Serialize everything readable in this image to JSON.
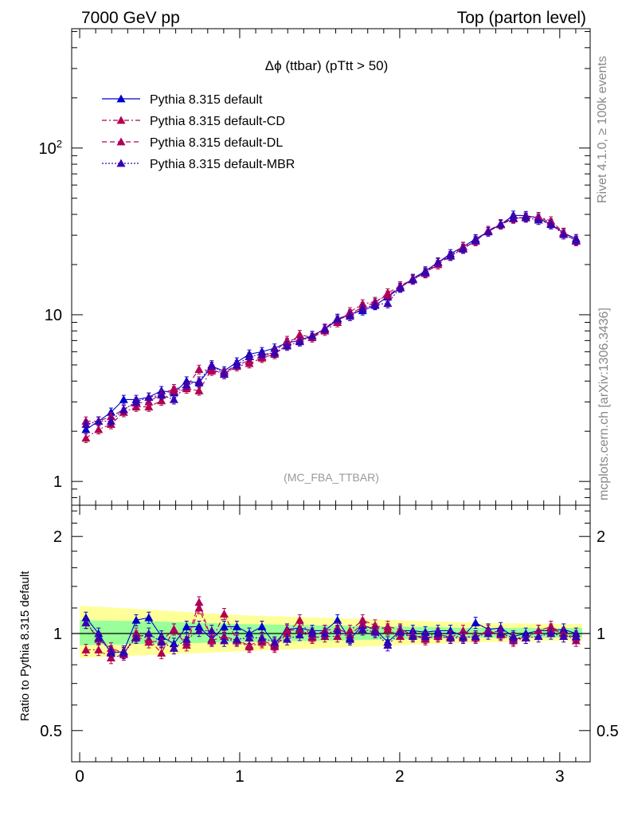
{
  "header": {
    "left": "7000 GeV pp",
    "right": "Top (parton level)"
  },
  "side_labels": {
    "rivet": "Rivet 4.1.0, ≥ 100k events",
    "mcplots": "mcplots.cern.ch [arXiv:1306.3436]"
  },
  "colors": {
    "default": "#0000cc",
    "cd": "#b0004e",
    "dl": "#b0005a",
    "mbr": "#3a00b0",
    "band_outer": "#ffff99",
    "band_inner": "#99ff99"
  },
  "chart_data": [
    {
      "type": "line",
      "title": "Δϕ (ttbar) (pTtt > 50)",
      "watermark": "(MC_FBA_TTBAR)",
      "xlabel": "",
      "ylabel": "",
      "yscale": "log",
      "xlim": [
        -0.05,
        3.19
      ],
      "ylim": [
        0.72,
        520
      ],
      "y_tick_labels": [
        "1",
        "10",
        "10^2"
      ],
      "x": [
        0.039,
        0.118,
        0.196,
        0.275,
        0.353,
        0.432,
        0.511,
        0.589,
        0.668,
        0.746,
        0.825,
        0.903,
        0.982,
        1.06,
        1.139,
        1.218,
        1.296,
        1.375,
        1.453,
        1.532,
        1.611,
        1.689,
        1.768,
        1.846,
        1.925,
        2.003,
        2.082,
        2.16,
        2.239,
        2.317,
        2.396,
        2.474,
        2.553,
        2.631,
        2.71,
        2.788,
        2.867,
        2.945,
        3.024,
        3.102
      ],
      "series": [
        {
          "name": "Pythia 8.315 default",
          "values": [
            2.05,
            2.3,
            2.6,
            3.1,
            3.1,
            3.2,
            3.5,
            3.4,
            4.0,
            3.9,
            4.9,
            4.6,
            5.2,
            5.8,
            6.0,
            6.3,
            6.8,
            7.0,
            7.5,
            8.2,
            9.3,
            10.1,
            10.6,
            11.4,
            12.8,
            14.5,
            16.5,
            18.3,
            20.6,
            23.2,
            25.6,
            28.5,
            31.5,
            34.8,
            39.5,
            39.3,
            38.0,
            34.8,
            31.0,
            28.6
          ]
        },
        {
          "name": "Pythia 8.315 default-CD",
          "values": [
            1.82,
            2.05,
            2.2,
            2.6,
            2.8,
            2.8,
            3.05,
            3.5,
            3.6,
            3.5,
            4.7,
            4.4,
            4.9,
            5.1,
            5.5,
            5.8,
            6.6,
            7.6,
            7.3,
            8.0,
            9.0,
            10.4,
            11.6,
            12.0,
            13.1,
            14.6,
            16.4,
            17.7,
            20.5,
            22.6,
            25.0,
            27.6,
            32.0,
            34.7,
            37.6,
            38.5,
            38.8,
            36.5,
            31.2,
            27.6
          ]
        },
        {
          "name": "Pythia 8.315 default-DL",
          "values": [
            2.3,
            2.3,
            2.45,
            2.7,
            2.95,
            3.0,
            3.35,
            3.6,
            3.7,
            4.7,
            4.6,
            4.5,
            5.0,
            5.3,
            5.6,
            6.0,
            7.0,
            7.2,
            7.3,
            8.3,
            9.5,
            10.0,
            11.2,
            11.8,
            13.5,
            14.9,
            16.4,
            17.8,
            20.0,
            22.6,
            25.7,
            27.6,
            32.0,
            35.1,
            38.0,
            38.4,
            38.8,
            35.5,
            30.9,
            27.7
          ]
        },
        {
          "name": "Pythia 8.315 default-MBR",
          "values": [
            2.2,
            2.3,
            2.3,
            2.7,
            3.0,
            3.2,
            3.3,
            3.1,
            3.8,
            4.0,
            5.0,
            4.4,
            5.0,
            5.6,
            5.8,
            5.9,
            6.5,
            6.9,
            7.5,
            8.2,
            9.5,
            9.8,
            10.9,
            11.5,
            11.7,
            14.6,
            16.2,
            18.0,
            20.7,
            22.5,
            24.8,
            28.0,
            31.5,
            35.0,
            38.1,
            38.2,
            37.0,
            34.9,
            30.3,
            28.0
          ]
        }
      ],
      "legend": [
        "Pythia 8.315 default",
        "Pythia 8.315 default-CD",
        "Pythia 8.315 default-DL",
        "Pythia 8.315 default-MBR"
      ],
      "legend_position": "top-left"
    },
    {
      "type": "line",
      "title": "",
      "xlabel": "",
      "ylabel": "Ratio to Pythia 8.315 default",
      "yscale": "log",
      "xlim": [
        -0.05,
        3.19
      ],
      "ylim": [
        0.4,
        2.5
      ],
      "x_tick_labels": [
        "0",
        "1",
        "2",
        "3"
      ],
      "y_tick_labels": [
        "0.5",
        "1",
        "2"
      ],
      "band_x": [
        0.0,
        0.5,
        1.0,
        1.5,
        2.0,
        2.5,
        3.0,
        3.14
      ],
      "band_outer": [
        [
          0.84,
          1.22
        ],
        [
          0.86,
          1.18
        ],
        [
          0.88,
          1.14
        ],
        [
          0.9,
          1.12
        ],
        [
          0.92,
          1.1
        ],
        [
          0.94,
          1.08
        ],
        [
          0.95,
          1.07
        ],
        [
          0.95,
          1.07
        ]
      ],
      "band_inner": [
        [
          0.92,
          1.1
        ],
        [
          0.93,
          1.09
        ],
        [
          0.94,
          1.07
        ],
        [
          0.95,
          1.06
        ],
        [
          0.96,
          1.05
        ],
        [
          0.97,
          1.04
        ],
        [
          0.97,
          1.04
        ],
        [
          0.97,
          1.04
        ]
      ],
      "series": [
        {
          "name": "Pythia 8.315 default",
          "values": [
            1.12,
            1.0,
            0.87,
            0.88,
            1.1,
            1.12,
            0.98,
            0.93,
            1.05,
            1.05,
            0.96,
            1.05,
            1.05,
            1.0,
            1.05,
            0.93,
            1.03,
            1.04,
            1.02,
            1.02,
            1.1,
            0.96,
            1.06,
            1.03,
            0.94,
            1.02,
            1.02,
            1.01,
            1.02,
            1.02,
            0.98,
            1.08,
            1.03,
            1.04,
            0.98,
            1.0,
            1.02,
            1.02,
            1.03,
            1.0
          ]
        },
        {
          "name": "Pythia 8.315 default-CD",
          "values": [
            0.89,
            0.89,
            0.84,
            0.86,
            1.0,
            0.96,
            0.87,
            1.03,
            0.92,
            1.2,
            0.95,
            1.15,
            0.95,
            0.91,
            0.94,
            0.91,
            1.0,
            1.1,
            0.97,
            0.98,
            0.98,
            1.02,
            1.1,
            1.06,
            1.03,
            0.98,
            0.99,
            0.96,
            0.99,
            0.98,
            0.98,
            0.97,
            1.02,
            0.99,
            0.95,
            0.97,
            1.02,
            1.05,
            1.0,
            0.95
          ]
        },
        {
          "name": "Pythia 8.315 default-DL",
          "values": [
            1.08,
            0.96,
            0.9,
            0.87,
            0.98,
            0.94,
            0.95,
            1.03,
            0.94,
            1.25,
            0.95,
            0.98,
            0.95,
            0.92,
            0.95,
            0.92,
            1.02,
            1.03,
            0.98,
            1.02,
            1.04,
            0.99,
            1.07,
            1.02,
            1.05,
            1.03,
            0.99,
            0.97,
            0.98,
            0.97,
            1.02,
            0.98,
            1.02,
            1.01,
            0.96,
            0.97,
            1.02,
            1.03,
            1.0,
            0.97
          ]
        },
        {
          "name": "Pythia 8.315 default-MBR",
          "values": [
            1.08,
            0.97,
            0.88,
            0.87,
            0.97,
            1.0,
            0.94,
            0.9,
            0.96,
            1.02,
            1.02,
            0.95,
            0.96,
            0.97,
            0.97,
            0.94,
            0.96,
            0.99,
            1.0,
            1.0,
            1.02,
            0.97,
            1.03,
            1.01,
            0.92,
            1.01,
            0.98,
            0.98,
            1.0,
            0.97,
            0.97,
            0.98,
            1.0,
            1.0,
            0.97,
            0.97,
            0.98,
            1.0,
            0.98,
            0.98
          ]
        }
      ]
    }
  ]
}
